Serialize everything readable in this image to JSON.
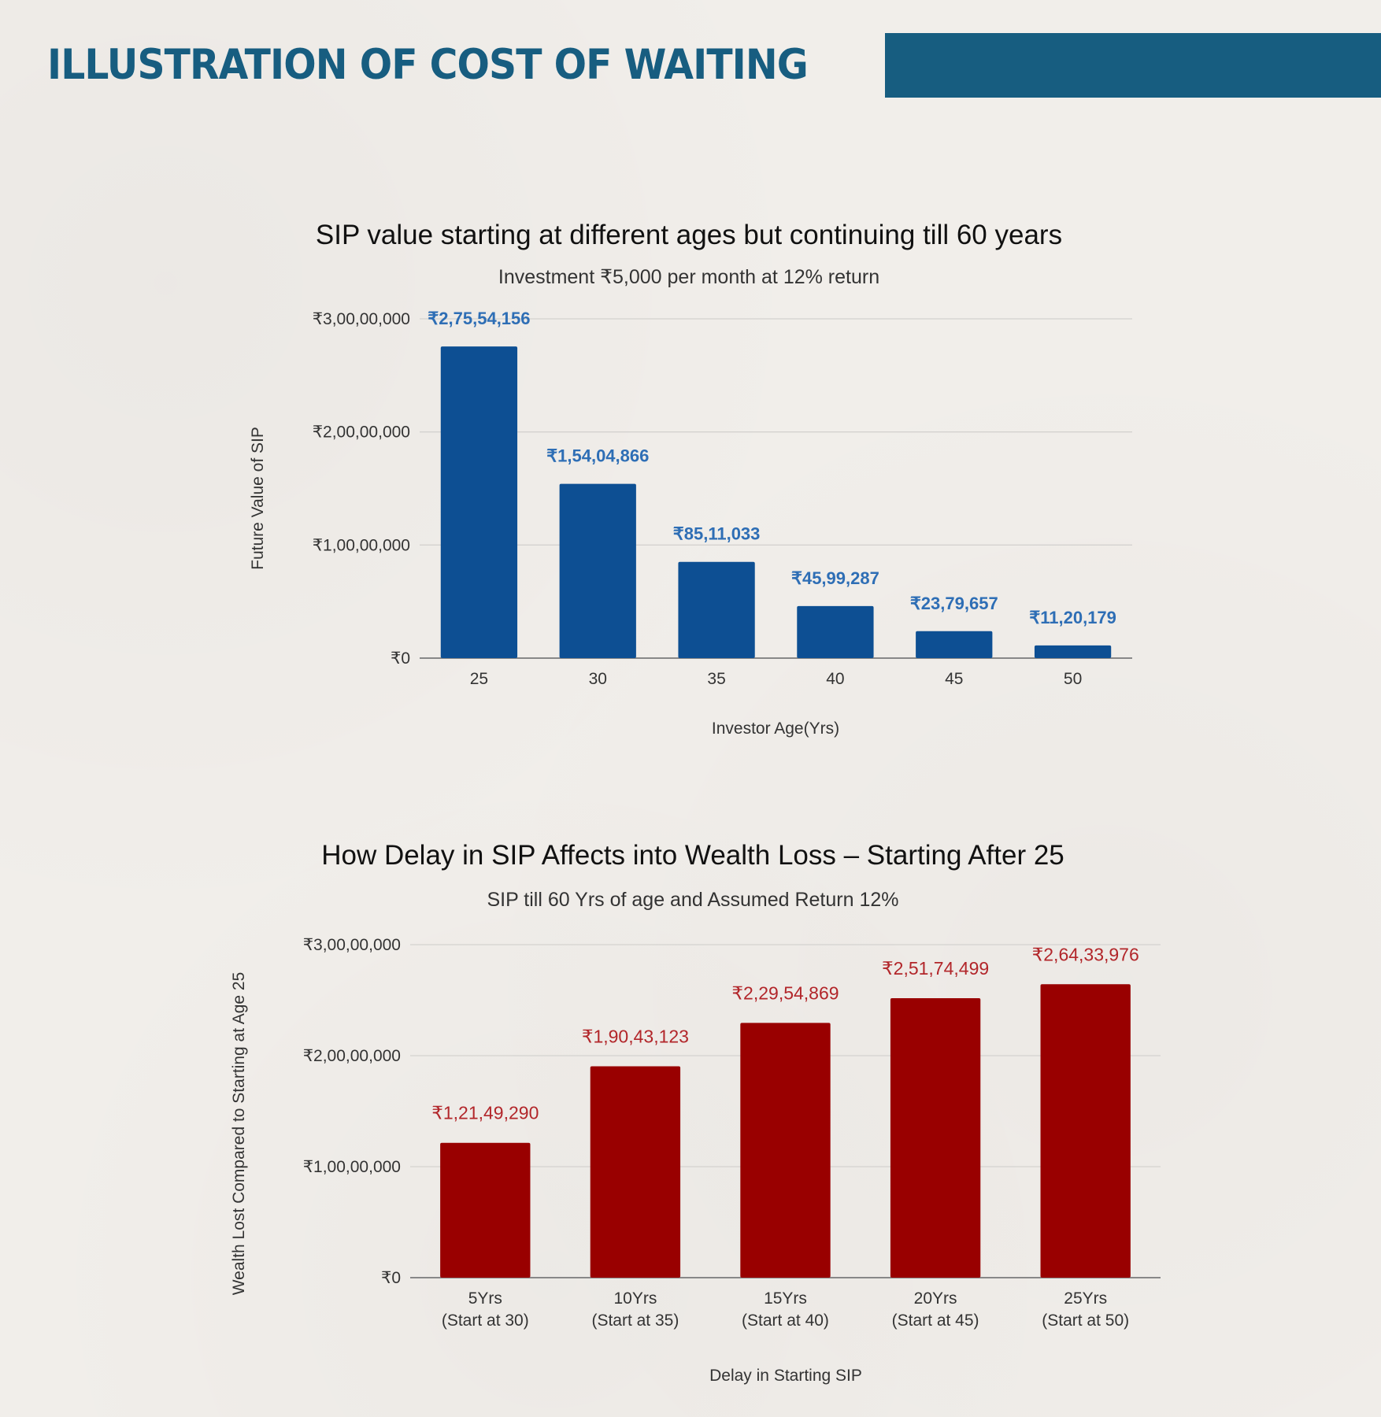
{
  "header": {
    "title": "ILLUSTRATION OF COST OF WAITING",
    "accent_color": "#175d80"
  },
  "chart_data": [
    {
      "type": "bar",
      "title": "SIP value starting at different ages but continuing till 60 years",
      "subtitle": "Investment ₹5,000 per month at 12% return",
      "xlabel": "Investor Age(Yrs)",
      "ylabel": "Future Value of SIP",
      "categories": [
        "25",
        "30",
        "35",
        "40",
        "45",
        "50"
      ],
      "values": [
        27554156,
        15404866,
        8511033,
        4599287,
        2379657,
        1120179
      ],
      "data_labels": [
        "₹2,75,54,156",
        "₹1,54,04,866",
        "₹85,11,033",
        "₹45,99,287",
        "₹23,79,657",
        "₹11,20,179"
      ],
      "ylim": [
        0,
        30000000
      ],
      "yticks": [
        0,
        10000000,
        20000000,
        30000000
      ],
      "ytick_labels": [
        "₹0",
        "₹1,00,00,000",
        "₹2,00,00,000",
        "₹3,00,00,000"
      ],
      "grid": true,
      "legend": "none",
      "bar_color": "#0d4f93",
      "label_color": "#2e6eb5"
    },
    {
      "type": "bar",
      "title": "How Delay in SIP Affects into Wealth Loss – Starting After 25",
      "subtitle": "SIP till 60 Yrs of age and Assumed Return 12%",
      "xlabel": "Delay in Starting SIP",
      "ylabel": "Wealth Lost Compared to Starting at Age 25",
      "categories": [
        [
          "5Yrs",
          "(Start at 30)"
        ],
        [
          "10Yrs",
          "(Start at 35)"
        ],
        [
          "15Yrs",
          "(Start at 40)"
        ],
        [
          "20Yrs",
          "(Start at 45)"
        ],
        [
          "25Yrs",
          "(Start at 50)"
        ]
      ],
      "values": [
        12149290,
        19043123,
        22954869,
        25174499,
        26433976
      ],
      "data_labels": [
        "₹1,21,49,290",
        "₹1,90,43,123",
        "₹2,29,54,869",
        "₹2,51,74,499",
        "₹2,64,33,976"
      ],
      "ylim": [
        0,
        30000000
      ],
      "yticks": [
        0,
        10000000,
        20000000,
        30000000
      ],
      "ytick_labels": [
        "₹0",
        "₹1,00,00,000",
        "₹2,00,00,000",
        "₹3,00,00,000"
      ],
      "grid": true,
      "legend": "none",
      "bar_color": "#990000",
      "label_color": "#b2262a"
    }
  ]
}
